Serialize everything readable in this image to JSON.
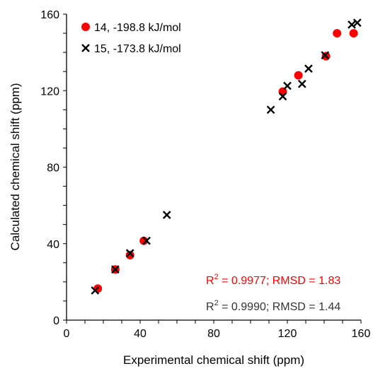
{
  "chart_data": {
    "type": "scatter",
    "title": "",
    "xlabel": "Experimental chemical shift (ppm)",
    "ylabel": "Calculated chemical shift (ppm)",
    "xlim": [
      0,
      160
    ],
    "ylim": [
      0,
      160
    ],
    "xticks": [
      0,
      40,
      80,
      120,
      160
    ],
    "yticks": [
      0,
      40,
      80,
      120,
      160
    ],
    "minor_step": 10,
    "grid": false,
    "legend_position": "top-left",
    "series": [
      {
        "name": "14, -198.8 kJ/mol",
        "marker": "circle",
        "color": "#ff0000",
        "points": [
          [
            17,
            16.5
          ],
          [
            26.5,
            26.5
          ],
          [
            34.5,
            34
          ],
          [
            42,
            41.5
          ],
          [
            117.5,
            119.5
          ],
          [
            126,
            128
          ],
          [
            141,
            138
          ],
          [
            147,
            150
          ],
          [
            156,
            150
          ]
        ]
      },
      {
        "name": "15, -173.8 kJ/mol",
        "marker": "x",
        "color": "#000000",
        "points": [
          [
            15.5,
            15.5
          ],
          [
            26.5,
            26.5
          ],
          [
            34.5,
            35
          ],
          [
            43.5,
            41.5
          ],
          [
            54.5,
            55
          ],
          [
            111,
            110
          ],
          [
            117.5,
            117
          ],
          [
            120,
            122.5
          ],
          [
            128,
            123.5
          ],
          [
            131.5,
            131.5
          ],
          [
            140.5,
            138.5
          ],
          [
            155,
            154.5
          ],
          [
            158,
            155.5
          ]
        ]
      }
    ],
    "annotations": [
      {
        "prefix": "R",
        "sup": "2",
        "rest": " = 0.9977; RMSD = 1.83",
        "color": "#ff0000"
      },
      {
        "prefix": "R",
        "sup": "2",
        "rest": " = 0.9990; RMSD = 1.44",
        "color": "#333333"
      }
    ]
  }
}
